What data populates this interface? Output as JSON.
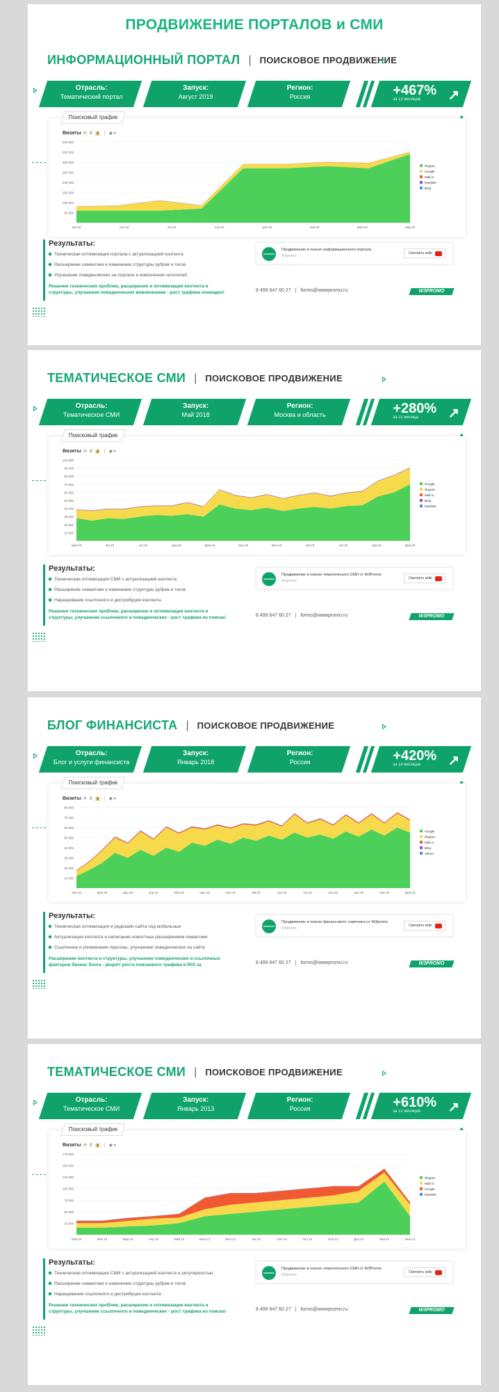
{
  "page_title": "ПРОДВИЖЕНИЕ ПОРТАЛОВ и СМИ",
  "labels": {
    "industry": "Отрасль:",
    "launch": "Запуск:",
    "region": "Регион:",
    "chart_tab": "Поисковый трафик",
    "visits": "Визиты",
    "results": "Результаты:",
    "youtube_btn": "Смотреть кейс",
    "phone": "8 499 647 60 27",
    "email": "forms@wwwpromo.ru",
    "logo": "W3PROMO",
    "separator": "|"
  },
  "cases": [
    {
      "title": "ИНФОРМАЦИОННЫЙ ПОРТАЛ",
      "subtitle": "ПОИСКОВОЕ ПРОДВИЖЕНИЕ",
      "industry": "Тематический портал",
      "launch": "Август 2019",
      "region": "Россия",
      "growth": "+467%",
      "growth_sub": "за 13 месяцев",
      "results": [
        "Техническая оптимизация портала с актуализацией контента",
        "Расширение семантики и изменение структуры рубрик и тегов",
        "Улучшение поведенческих на портале  и вовлечения читателей"
      ],
      "summary": "Решение технических проблем, расширение и оптимизация контента и структуры, улучшение поведенческих вовлечением - рост трафика очевиден!",
      "video_title": "Продвижение в поиске информационного портала",
      "video_sub": "W3promo",
      "chart_data": {
        "type": "area",
        "x_ticks": [
          "авг.19",
          "сен.19",
          "окт.19",
          "ноя.19",
          "дек.19",
          "янв.20",
          "фев.20",
          "мар.20"
        ],
        "y_ticks": [
          "400 000",
          "350 000",
          "300 000",
          "250 000",
          "200 000",
          "150 000",
          "100 000",
          "50 000",
          ""
        ],
        "ylim": [
          0,
          400000
        ],
        "x": [
          0,
          1,
          2,
          3,
          4,
          5,
          6,
          7,
          8
        ],
        "series": [
          {
            "name": "Яндекс",
            "color": "#4cd05a",
            "values": [
              60000,
              60000,
              60000,
              70000,
              270000,
              270000,
              280000,
              270000,
              340000
            ]
          },
          {
            "name": "Google",
            "color": "#f7d94c",
            "values": [
              20000,
              25000,
              50000,
              15000,
              20000,
              20000,
              20000,
              25000,
              10000
            ]
          },
          {
            "name": "Mail.ru",
            "color": "#f15a31",
            "values": [
              500,
              500,
              500,
              500,
              500,
              500,
              500,
              500,
              500
            ]
          },
          {
            "name": "Rambler",
            "color": "#8a4fcf",
            "values": [
              300,
              300,
              300,
              300,
              300,
              300,
              300,
              300,
              300
            ]
          },
          {
            "name": "Bing",
            "color": "#3c8ee8",
            "values": [
              300,
              300,
              300,
              300,
              300,
              300,
              300,
              300,
              300
            ]
          }
        ]
      }
    },
    {
      "title": "ТЕМАТИЧЕСКОЕ СМИ",
      "subtitle": "ПОИСКОВОЕ ПРОДВИЖЕНИЕ",
      "industry": "Тематическое СМИ",
      "launch": "Май 2018",
      "region": "Москва и область",
      "growth": "+280%",
      "growth_sub": "за 22 месяца",
      "results": [
        "Техническая оптимизация СМИ с актуализацией контента",
        "Расширение семантики и изменение структуры рубрик и тегов",
        "Наращивание ссылочного и дистрибуция контента"
      ],
      "summary": "Решение технических проблем, расширение и оптимизация контента и структуры, улучшение ссылочного и поведенческих - рост трафика из поиска!",
      "video_title": "Продвижение в поиске тематического СМИ от W3Promo",
      "video_sub": "W3promo",
      "chart_data": {
        "type": "area",
        "x_ticks": [
          "май.18",
          "авг.18",
          "окт.18",
          "дек.18",
          "фев.19",
          "апр.19",
          "июн.19",
          "авг.19",
          "окт.19",
          "дек.19",
          "фев.20"
        ],
        "y_ticks": [
          "100 000",
          "90 000",
          "80 000",
          "70 000",
          "60 000",
          "50 000",
          "40 000",
          "30 000",
          "20 000",
          "10 000",
          ""
        ],
        "ylim": [
          0,
          100000
        ],
        "x": [
          0,
          1,
          2,
          3,
          4,
          5,
          6,
          7,
          8,
          9,
          10,
          11,
          12,
          13,
          14,
          15,
          16,
          17,
          18,
          19,
          20,
          21
        ],
        "series": [
          {
            "name": "Google",
            "color": "#4cd05a",
            "values": [
              28000,
              25000,
              28000,
              27000,
              30000,
              32000,
              31000,
              33000,
              30000,
              45000,
              40000,
              38000,
              41000,
              37000,
              40000,
              42000,
              40000,
              43000,
              44000,
              55000,
              60000,
              70000
            ]
          },
          {
            "name": "Яндекс",
            "color": "#f7d94c",
            "values": [
              10000,
              12000,
              11000,
              12000,
              12000,
              11000,
              12000,
              14000,
              12000,
              18000,
              16000,
              15000,
              16000,
              15000,
              16000,
              17000,
              15000,
              16000,
              17000,
              19000,
              21000,
              20000
            ]
          },
          {
            "name": "Mail.ru",
            "color": "#f15a31",
            "values": [
              400,
              400,
              400,
              400,
              400,
              400,
              400,
              400,
              400,
              400,
              400,
              400,
              400,
              400,
              400,
              400,
              400,
              400,
              400,
              400,
              400,
              400
            ]
          },
          {
            "name": "Bing",
            "color": "#8a4fcf",
            "values": [
              200,
              200,
              200,
              200,
              200,
              200,
              200,
              200,
              200,
              200,
              200,
              200,
              200,
              200,
              200,
              200,
              200,
              200,
              200,
              200,
              200,
              200
            ]
          },
          {
            "name": "Rambler",
            "color": "#3c8ee8",
            "values": [
              200,
              200,
              200,
              200,
              200,
              200,
              200,
              200,
              200,
              200,
              200,
              200,
              200,
              200,
              200,
              200,
              200,
              200,
              200,
              200,
              200,
              200
            ]
          }
        ]
      }
    },
    {
      "title": "БЛОГ ФИНАНСИСТА",
      "subtitle": "ПОИСКОВОЕ ПРОДВИЖЕНИЕ",
      "industry": "Блог и услуги финансиста",
      "launch": "Январь 2018",
      "region": "Россия",
      "growth": "+420%",
      "growth_sub": "за 14 месяцев",
      "results": [
        "Техническая оптимизация и редизайн сайта под мобильные",
        "Актуализация контента и написание новостных расширением семантики",
        "Ссылочное и упоминания персоны, улучшение поведенческих на сайте"
      ],
      "summary": "Расширение контента и структуры, улучшение поведенческих и ссылочных факторов бизнес блога - рецепт роста поискового трафика и ROI за",
      "video_title": "Продвижение в поиске финансового советника от W3promo",
      "video_sub": "W3promo",
      "chart_data": {
        "type": "area",
        "x_ticks": [
          "янв.18",
          "фев.18",
          "мар.18",
          "апр.18",
          "май.18",
          "июн.18",
          "июл.18",
          "авг.18",
          "сен.18",
          "окт.18",
          "ноя.18",
          "дек.18",
          "янв.19",
          "фев.19"
        ],
        "y_ticks": [
          "80 000",
          "70 000",
          "60 000",
          "50 000",
          "40 000",
          "30 000",
          "20 000",
          "10 000",
          ""
        ],
        "ylim": [
          0,
          80000
        ],
        "x": [
          0,
          1,
          2,
          3,
          4,
          5,
          6,
          7,
          8,
          9,
          10,
          11,
          12,
          13,
          14,
          15,
          16,
          17,
          18,
          19,
          20,
          21,
          22,
          23,
          24,
          25,
          26
        ],
        "series": [
          {
            "name": "Google",
            "color": "#4cd05a",
            "values": [
              12000,
              18000,
              25000,
              35000,
              30000,
              38000,
              32000,
              40000,
              36000,
              45000,
              42000,
              48000,
              44000,
              50000,
              47000,
              52000,
              48000,
              55000,
              50000,
              53000,
              49000,
              56000,
              51000,
              58000,
              52000,
              60000,
              55000
            ]
          },
          {
            "name": "Яндекс",
            "color": "#f7d94c",
            "values": [
              5000,
              8000,
              12000,
              15000,
              14000,
              18000,
              16000,
              20000,
              18000,
              15000,
              16000,
              14000,
              15000,
              13000,
              15000,
              14000,
              13000,
              18000,
              14000,
              15000,
              13000,
              16000,
              13000,
              15000,
              12000,
              14000,
              12000
            ]
          },
          {
            "name": "Mail.ru",
            "color": "#f15a31",
            "values": [
              500,
              600,
              700,
              800,
              800,
              900,
              800,
              900,
              800,
              900,
              800,
              900,
              800,
              900,
              800,
              900,
              800,
              900,
              800,
              900,
              800,
              900,
              800,
              900,
              800,
              900,
              800
            ]
          },
          {
            "name": "Bing",
            "color": "#8a4fcf",
            "values": [
              200,
              200,
              200,
              200,
              200,
              200,
              200,
              200,
              200,
              200,
              200,
              200,
              200,
              200,
              200,
              200,
              200,
              200,
              200,
              200,
              200,
              200,
              200,
              200,
              200,
              200,
              200
            ]
          },
          {
            "name": "Yahoo",
            "color": "#3c8ee8",
            "values": [
              100,
              100,
              100,
              100,
              100,
              100,
              100,
              100,
              100,
              100,
              100,
              100,
              100,
              100,
              100,
              100,
              100,
              100,
              100,
              100,
              100,
              100,
              100,
              100,
              100,
              100,
              100
            ]
          }
        ]
      }
    },
    {
      "title": "ТЕМАТИЧЕСКОЕ СМИ",
      "subtitle": "ПОИСКОВОЕ ПРОДВИЖЕНИЕ",
      "industry": "Тематическое СМИ",
      "launch": "Январь 2013",
      "region": "Россия",
      "growth": "+610%",
      "growth_sub": "за 12 месяцев",
      "results": [
        "Техническая оптимизация СМИ с актуализацией контента и регулярностью",
        "Расширение семантики и изменение структуры рубрик и тегов",
        "Наращивание ссылочного и дистрибуция контента"
      ],
      "summary": "Решение технических проблем, расширение и оптимизация контента и структуры, улучшение ссылочного и поведенческих - рост трафика из поиска!",
      "video_title": "Продвижение в поиске тематического СМИ от W3Promo",
      "video_sub": "W3promo",
      "chart_data": {
        "type": "area",
        "x_ticks": [
          "Янв.13",
          "Фев.13",
          "Мар.13",
          "Апр.13",
          "Май.13",
          "Июн.13",
          "Июл.13",
          "Авг.13",
          "Сен.13",
          "Окт.13",
          "Ноя.13",
          "Дек.13",
          "Янв.14",
          "Фев.14"
        ],
        "y_ticks": [
          "175 000",
          "150 000",
          "125 000",
          "100 000",
          "75 000",
          "50 000",
          "25 000",
          ""
        ],
        "ylim": [
          0,
          175000
        ],
        "x": [
          0,
          1,
          2,
          3,
          4,
          5,
          6,
          7,
          8,
          9,
          10,
          11,
          12,
          13
        ],
        "series": [
          {
            "name": "Яндекс",
            "color": "#4cd05a",
            "values": [
              15000,
              15000,
              18000,
              20000,
              25000,
              40000,
              45000,
              50000,
              55000,
              60000,
              65000,
              70000,
              115000,
              40000
            ]
          },
          {
            "name": "Mail.ru",
            "color": "#f7d94c",
            "values": [
              10000,
              10000,
              12000,
              15000,
              12000,
              15000,
              20000,
              20000,
              20000,
              20000,
              20000,
              25000,
              20000,
              25000
            ]
          },
          {
            "name": "Google",
            "color": "#f15a31",
            "values": [
              5000,
              5000,
              6000,
              5000,
              8000,
              25000,
              25000,
              20000,
              20000,
              20000,
              20000,
              10000,
              8000,
              5000
            ]
          },
          {
            "name": "Rambler",
            "color": "#3c8ee8",
            "values": [
              500,
              500,
              500,
              500,
              500,
              500,
              500,
              500,
              500,
              500,
              500,
              500,
              500,
              500
            ]
          }
        ]
      }
    }
  ]
}
